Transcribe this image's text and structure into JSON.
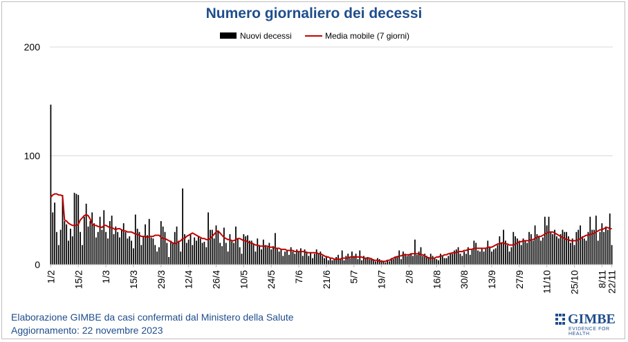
{
  "chart_data": {
    "type": "bar",
    "title": "Numero giornaliero dei decessi",
    "xlabel": "",
    "ylabel": "",
    "ylim": [
      0,
      200
    ],
    "yticks": [
      0,
      100,
      200
    ],
    "grid": "horizontal",
    "legend_position": "top",
    "x_tick_labels": [
      "1/2",
      "15/2",
      "1/3",
      "15/3",
      "29/3",
      "12/4",
      "26/4",
      "10/5",
      "24/5",
      "7/6",
      "21/6",
      "5/7",
      "19/7",
      "2/8",
      "16/8",
      "30/8",
      "13/9",
      "27/9",
      "11/10",
      "25/10",
      "8/11",
      "22/11"
    ],
    "bar_color": "#000000",
    "line_color": "#c00000",
    "series": [
      {
        "name": "Nuovi decessi",
        "kind": "bar",
        "values": [
          147,
          48,
          57,
          30,
          18,
          32,
          64,
          40,
          37,
          22,
          33,
          26,
          66,
          65,
          64,
          30,
          18,
          44,
          56,
          35,
          40,
          48,
          38,
          25,
          30,
          44,
          32,
          50,
          30,
          24,
          40,
          45,
          28,
          35,
          30,
          25,
          32,
          38,
          30,
          24,
          26,
          22,
          15,
          46,
          33,
          30,
          18,
          26,
          37,
          27,
          42,
          25,
          24,
          18,
          12,
          16,
          40,
          35,
          30,
          20,
          7,
          22,
          20,
          30,
          35,
          22,
          12,
          70,
          28,
          20,
          23,
          28,
          18,
          25,
          22,
          26,
          24,
          20,
          21,
          16,
          48,
          32,
          32,
          24,
          36,
          31,
          20,
          17,
          34,
          20,
          12,
          28,
          22,
          20,
          35,
          24,
          16,
          10,
          28,
          26,
          27,
          22,
          22,
          19,
          12,
          24,
          18,
          14,
          23,
          18,
          16,
          20,
          14,
          17,
          29,
          15,
          12,
          14,
          8,
          12,
          13,
          9,
          16,
          12,
          10,
          14,
          12,
          15,
          8,
          14,
          12,
          8,
          11,
          6,
          10,
          14,
          10,
          12,
          8,
          6,
          8,
          4,
          6,
          4,
          5,
          7,
          9,
          5,
          13,
          4,
          8,
          10,
          6,
          12,
          8,
          10,
          5,
          13,
          4,
          8,
          6,
          7,
          5,
          6,
          5,
          3,
          6,
          5,
          4,
          3,
          2,
          4,
          3,
          6,
          5,
          7,
          8,
          13,
          5,
          12,
          10,
          8,
          9,
          10,
          8,
          23,
          9,
          12,
          16,
          8,
          10,
          8,
          7,
          10,
          8,
          6,
          5,
          4,
          10,
          8,
          6,
          6,
          8,
          11,
          10,
          13,
          14,
          16,
          10,
          8,
          12,
          10,
          16,
          9,
          14,
          22,
          20,
          13,
          12,
          15,
          12,
          15,
          22,
          16,
          12,
          14,
          15,
          18,
          26,
          20,
          32,
          22,
          18,
          12,
          16,
          30,
          26,
          24,
          22,
          18,
          24,
          22,
          20,
          30,
          28,
          22,
          36,
          28,
          26,
          22,
          25,
          44,
          36,
          44,
          30,
          28,
          32,
          26,
          24,
          28,
          32,
          30,
          30,
          26,
          20,
          24,
          18,
          30,
          32,
          36,
          26,
          24,
          22,
          30,
          44,
          32,
          32,
          45,
          22,
          30,
          38,
          30,
          35,
          32,
          47,
          18
        ]
      },
      {
        "name": "Media mobile (7 giorni)",
        "kind": "line",
        "values": [
          62,
          64,
          65,
          65,
          64,
          64,
          63,
          41,
          40,
          38,
          37,
          36,
          36,
          36,
          37,
          41,
          43,
          45,
          46,
          45,
          42,
          37,
          36,
          36,
          35,
          35,
          34,
          36,
          36,
          35,
          34,
          34,
          33,
          32,
          33,
          33,
          32,
          31,
          31,
          30,
          30,
          30,
          29,
          28,
          28,
          27,
          26,
          26,
          26,
          25,
          26,
          26,
          26,
          27,
          27,
          27,
          25,
          24,
          24,
          23,
          22,
          21,
          20,
          19,
          20,
          21,
          22,
          24,
          24,
          26,
          27,
          28,
          29,
          28,
          27,
          26,
          25,
          24,
          24,
          23,
          23,
          24,
          26,
          28,
          30,
          31,
          29,
          27,
          25,
          24,
          23,
          23,
          22,
          22,
          23,
          24,
          24,
          23,
          22,
          22,
          21,
          20,
          20,
          19,
          18,
          18,
          17,
          17,
          17,
          17,
          17,
          16,
          16,
          16,
          15,
          15,
          15,
          14,
          14,
          14,
          13,
          13,
          13,
          13,
          12,
          12,
          12,
          12,
          12,
          12,
          11,
          11,
          11,
          11,
          11,
          11,
          10,
          10,
          9,
          8,
          7,
          7,
          6,
          6,
          5,
          5,
          5,
          5,
          6,
          6,
          6,
          6,
          7,
          7,
          7,
          7,
          7,
          7,
          7,
          6,
          6,
          6,
          6,
          5,
          4,
          4,
          4,
          3,
          3,
          3,
          3,
          4,
          4,
          5,
          6,
          7,
          7,
          8,
          8,
          9,
          9,
          9,
          9,
          10,
          10,
          10,
          10,
          10,
          9,
          9,
          8,
          7,
          6,
          6,
          6,
          6,
          7,
          7,
          8,
          8,
          9,
          9,
          10,
          10,
          11,
          11,
          11,
          12,
          12,
          12,
          13,
          13,
          14,
          14,
          14,
          15,
          15,
          15,
          15,
          15,
          15,
          15,
          16,
          16,
          16,
          17,
          18,
          19,
          19,
          20,
          20,
          19,
          19,
          18,
          18,
          18,
          19,
          20,
          21,
          21,
          22,
          22,
          22,
          22,
          23,
          23,
          24,
          25,
          26,
          26,
          27,
          28,
          29,
          30,
          30,
          30,
          29,
          28,
          27,
          26,
          25,
          24,
          23,
          23,
          22,
          22,
          22,
          22,
          23,
          24,
          25,
          26,
          27,
          27,
          28,
          28,
          29,
          30,
          31,
          32,
          32,
          33,
          34,
          34,
          33,
          33
        ]
      }
    ]
  },
  "footer": {
    "credit_line1": "Elaborazione GIMBE da casi confermati dal Ministero della Salute",
    "credit_line2": "Aggiornamento: 22 novembre 2023"
  },
  "logo": {
    "name": "GIMBE",
    "tagline": "EVIDENCE FOR HEALTH",
    "color": "#1f4e8c"
  }
}
